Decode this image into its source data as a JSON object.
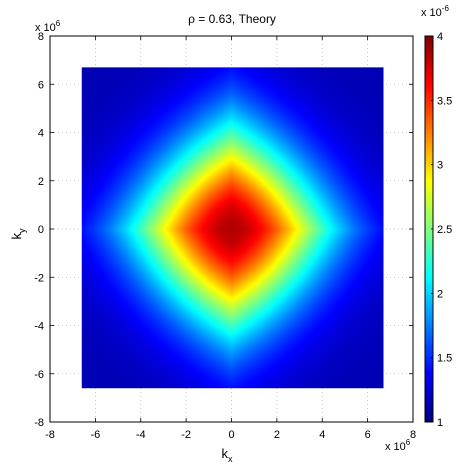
{
  "chart_data": {
    "type": "heatmap",
    "title": "ρ = 0.63, Theory",
    "xlabel": "k",
    "xlabel_sub": "x",
    "ylabel": "k",
    "ylabel_sub": "y",
    "xlim": [
      -8,
      8
    ],
    "ylim": [
      -8,
      8
    ],
    "data_extent": [
      -6.6,
      6.7
    ],
    "xticks": [
      "-8",
      "-6",
      "-4",
      "-2",
      "0",
      "2",
      "4",
      "6",
      "8"
    ],
    "yticks": [
      "-8",
      "-6",
      "-4",
      "-2",
      "0",
      "2",
      "4",
      "6",
      "8"
    ],
    "axis_multiplier_base": "x 10",
    "axis_multiplier_exp": "6",
    "colorbar": {
      "range": [
        1,
        4
      ],
      "ticks": [
        "1",
        "1.5",
        "2",
        "2.5",
        "3",
        "3.5",
        "4"
      ],
      "multiplier_base": "x 10",
      "multiplier_exp": "-6",
      "colormap": "jet"
    },
    "peak": {
      "x": 0,
      "y": 0,
      "value": 3.85
    },
    "edge_value": 1.4,
    "corner_value": 1.15,
    "grid": true
  }
}
